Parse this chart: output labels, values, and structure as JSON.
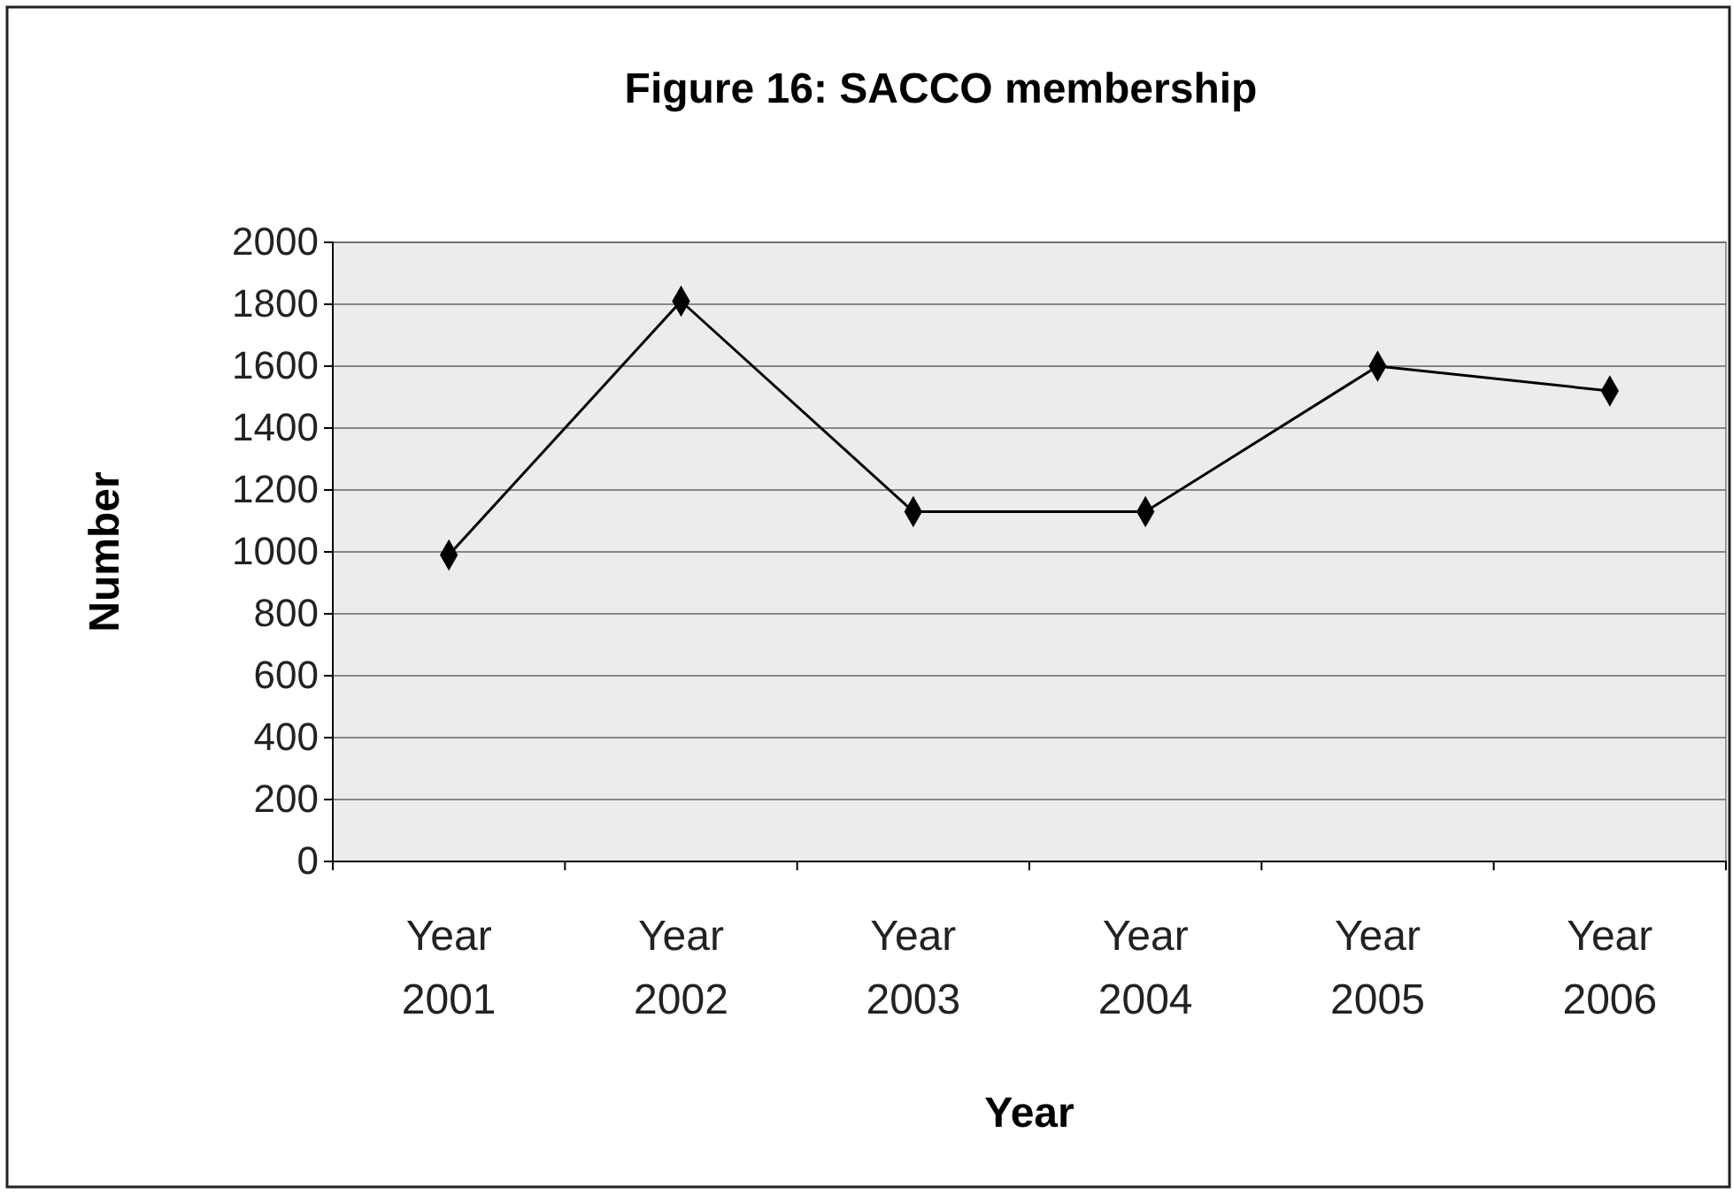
{
  "chart_data": {
    "type": "line",
    "title": "Figure 16: SACCO membership",
    "xlabel": "Year",
    "ylabel": "Number",
    "categories": [
      "Year 2001",
      "Year 2002",
      "Year 2003",
      "Year 2004",
      "Year 2005",
      "Year 2006"
    ],
    "series": [
      {
        "color": "#000000",
        "values": [
          990,
          1810,
          1130,
          1130,
          1600,
          1520
        ]
      }
    ],
    "ylim": [
      0,
      2000
    ],
    "yticks": [
      0,
      200,
      400,
      600,
      800,
      1000,
      1200,
      1400,
      1600,
      1800,
      2000
    ],
    "grid": "y",
    "legend": false,
    "marker": "diamond",
    "line_style": "solid"
  }
}
